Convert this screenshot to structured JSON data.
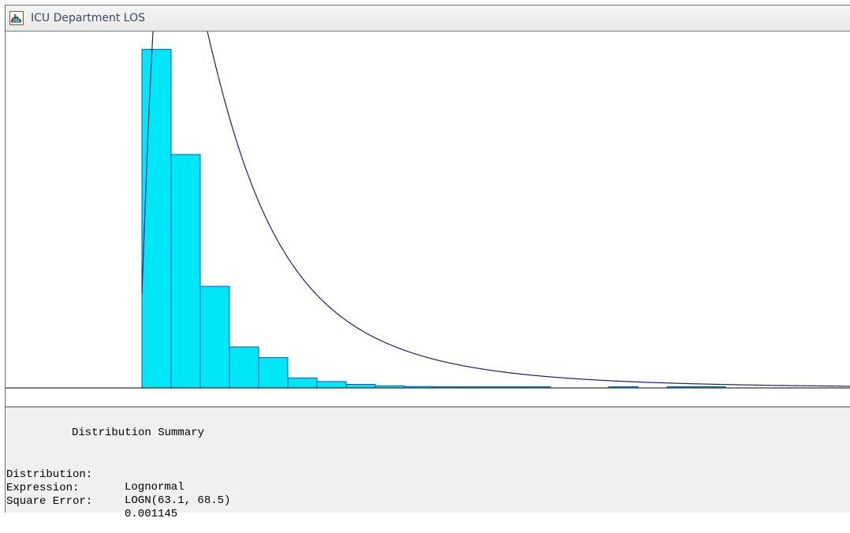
{
  "window": {
    "title": "ICU Department LOS",
    "icon": "histogram-app-icon"
  },
  "chart_data": {
    "type": "bar",
    "bins": 23,
    "values": [
      0.95,
      0.655,
      0.285,
      0.115,
      0.085,
      0.028,
      0.018,
      0.01,
      0.006,
      0.004,
      0.003,
      0.002,
      0.001,
      0.002,
      0.0,
      0.0,
      0.001,
      0.0,
      0.001,
      0.001,
      0.0,
      0.0,
      0.0
    ],
    "fit": {
      "distribution": "Lognormal",
      "mean": 63.1,
      "stddev": 68.5
    },
    "colors": {
      "bar_fill": "#00e8f8",
      "bar_edge": "#1450c8",
      "curve": "#1e1e78",
      "axis": "#000000"
    },
    "grid": false,
    "axes_labels": false
  },
  "summary": {
    "title": "Distribution Summary",
    "rows": [
      {
        "key": "Distribution:",
        "value": "Lognormal"
      },
      {
        "key": "Expression:",
        "value": "LOGN(63.1, 68.5)"
      },
      {
        "key": "Square Error:",
        "value": "0.001145"
      }
    ]
  }
}
